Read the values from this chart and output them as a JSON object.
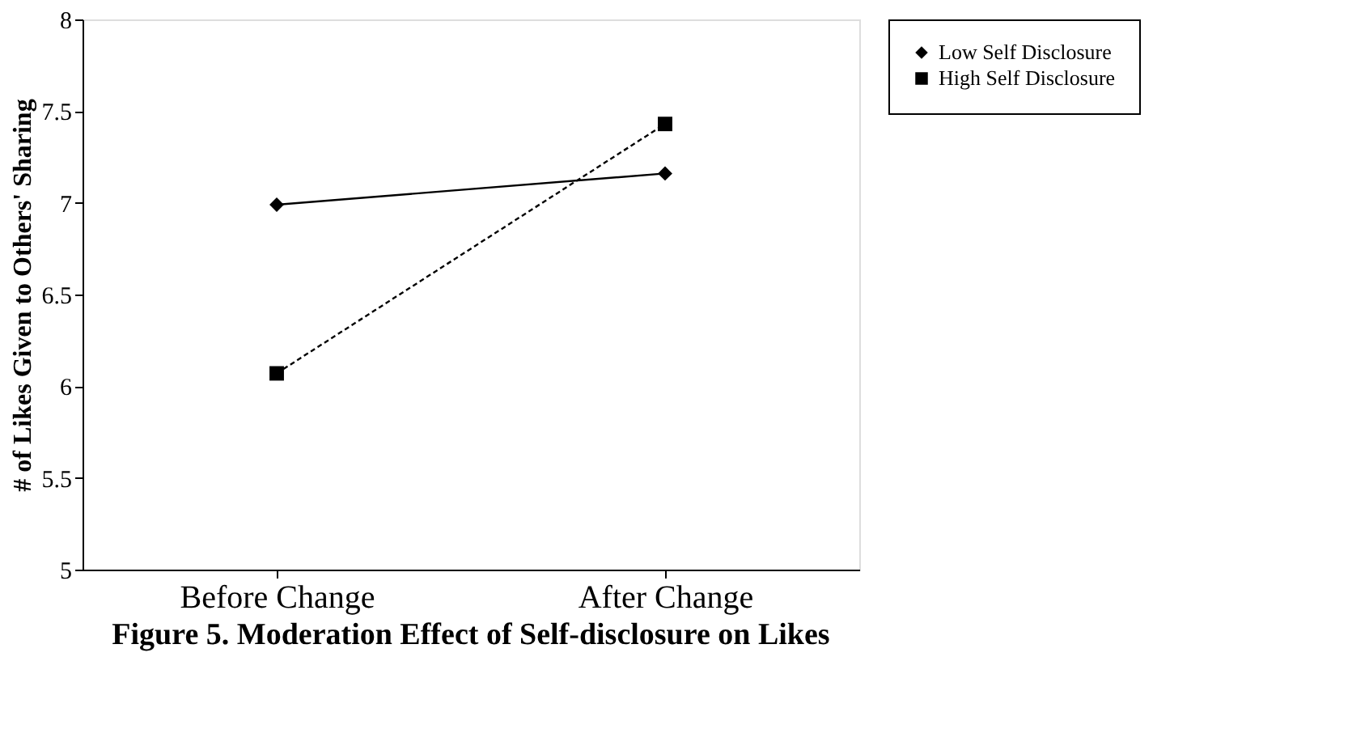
{
  "chart_data": {
    "type": "line",
    "title": "Figure 5. Moderation Effect of Self-disclosure on Likes",
    "ylabel": "# of Likes Given to Others' Sharing",
    "categories": [
      "Before Change",
      "After Change"
    ],
    "series": [
      {
        "name": "Low Self Disclosure",
        "color": "#000000",
        "values": [
          6.99,
          7.16
        ],
        "marker": "diamond",
        "line_style": "solid"
      },
      {
        "name": "High Self Disclosure",
        "color": "#000000",
        "values": [
          6.07,
          7.43
        ],
        "marker": "square",
        "line_style": "dashed"
      }
    ],
    "ylim": [
      5,
      8
    ],
    "yticks": [
      5,
      5.5,
      6,
      6.5,
      7,
      7.5,
      8
    ],
    "grid": false,
    "legend": "right"
  }
}
